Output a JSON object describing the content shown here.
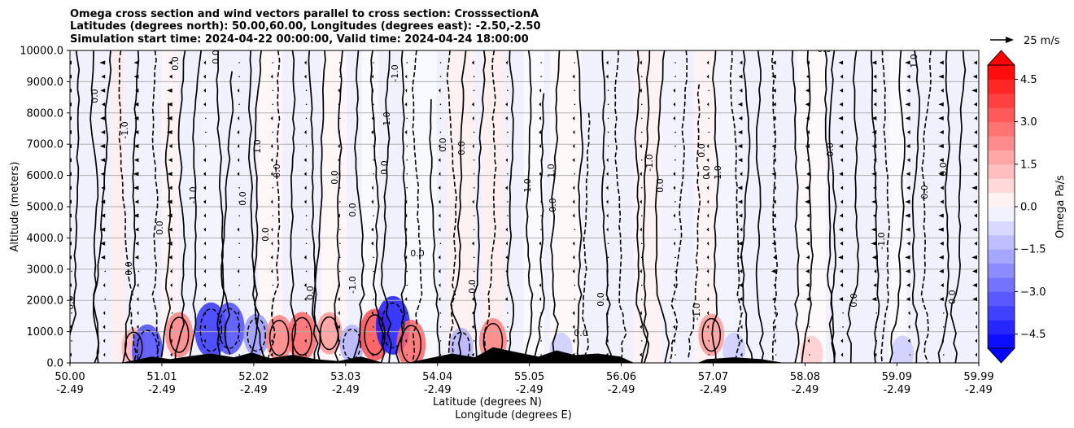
{
  "title_lines": [
    "Omega cross section and wind vectors parallel to cross section: CrosssectionA",
    "Latitudes (degrees north): 50.00,60.00, Longitudes (degrees east): -2.50,-2.50",
    "Simulation start time: 2024-04-22 00:00:00, Valid time: 2024-04-24 18:00:00"
  ],
  "chart_data": {
    "type": "heatmap",
    "title": "Omega cross section and wind vectors parallel to cross section: CrosssectionA",
    "ylabel": "Altitude (meters)",
    "xlabel_lines": [
      "Latitude (degrees N)",
      "Longitude (degrees E)"
    ],
    "ylim": [
      0,
      10000
    ],
    "xlim": [
      50.0,
      59.99
    ],
    "y_ticks": [
      0,
      1000,
      2000,
      3000,
      4000,
      5000,
      6000,
      7000,
      8000,
      9000,
      10000
    ],
    "y_tick_labels": [
      "0.0",
      "1000.0",
      "2000.0",
      "3000.0",
      "4000.0",
      "5000.0",
      "6000.0",
      "7000.0",
      "8000.0",
      "9000.0",
      "10000.0"
    ],
    "x_ticks": [
      50.0,
      51.01,
      52.02,
      53.03,
      54.04,
      55.05,
      56.06,
      57.07,
      58.08,
      59.09,
      59.99
    ],
    "x_tick_labels": [
      [
        "50.00",
        "-2.49"
      ],
      [
        "51.01",
        "-2.49"
      ],
      [
        "52.02",
        "-2.49"
      ],
      [
        "53.03",
        "-2.49"
      ],
      [
        "54.04",
        "-2.49"
      ],
      [
        "55.05",
        "-2.49"
      ],
      [
        "56.06",
        "-2.49"
      ],
      [
        "57.07",
        "-2.49"
      ],
      [
        "58.08",
        "-2.49"
      ],
      [
        "59.09",
        "-2.49"
      ],
      [
        "59.99",
        "-2.49"
      ]
    ],
    "grid": "horizontal",
    "colorbar": {
      "label": "Omega Pa/s",
      "range": [
        -5.0,
        5.0
      ],
      "ticks": [
        -4.5,
        -3.0,
        -1.5,
        0.0,
        1.5,
        3.0,
        4.5
      ],
      "tick_labels": [
        "−4.5",
        "−3.0",
        "−1.5",
        "0.0",
        "1.5",
        "3.0",
        "4.5"
      ],
      "extend": "both",
      "colormap": "bwr"
    },
    "quiver_key": {
      "label": "25 m/s",
      "speed": 25
    },
    "contour_labels": [
      "0.0",
      "-1.0",
      "1.0"
    ],
    "vertical_bands": [
      {
        "lat": 50.6,
        "omega": 1.0
      },
      {
        "lat": 50.75,
        "omega": -0.8
      },
      {
        "lat": 51.1,
        "omega": 0.6
      },
      {
        "lat": 51.55,
        "omega": -0.6
      },
      {
        "lat": 52.2,
        "omega": 0.5
      },
      {
        "lat": 52.9,
        "omega": 0.5
      },
      {
        "lat": 53.3,
        "omega": -0.3
      },
      {
        "lat": 53.85,
        "omega": -0.4
      },
      {
        "lat": 54.3,
        "omega": 0.8
      },
      {
        "lat": 54.65,
        "omega": 0.9
      },
      {
        "lat": 55.1,
        "omega": -0.3
      },
      {
        "lat": 55.45,
        "omega": 0.4
      },
      {
        "lat": 56.35,
        "omega": 0.7
      },
      {
        "lat": 56.6,
        "omega": -0.7
      },
      {
        "lat": 57.0,
        "omega": 0.6
      },
      {
        "lat": 57.2,
        "omega": -0.6
      },
      {
        "lat": 58.15,
        "omega": 0.3
      },
      {
        "lat": 59.1,
        "omega": -0.3
      }
    ],
    "low_level_cells": [
      {
        "lat": 50.7,
        "alt": 500,
        "omega": 1.5
      },
      {
        "lat": 50.85,
        "alt": 400,
        "omega": -3.5
      },
      {
        "lat": 51.2,
        "alt": 900,
        "omega": 2.5
      },
      {
        "lat": 51.55,
        "alt": 1050,
        "omega": -4.0
      },
      {
        "lat": 51.75,
        "alt": 1100,
        "omega": -3.5
      },
      {
        "lat": 52.05,
        "alt": 900,
        "omega": -2.0
      },
      {
        "lat": 52.3,
        "alt": 800,
        "omega": 2.5
      },
      {
        "lat": 52.55,
        "alt": 850,
        "omega": 3.0
      },
      {
        "lat": 52.85,
        "alt": 950,
        "omega": 2.0
      },
      {
        "lat": 53.1,
        "alt": 600,
        "omega": -1.5
      },
      {
        "lat": 53.35,
        "alt": 900,
        "omega": 3.5
      },
      {
        "lat": 53.55,
        "alt": 1200,
        "omega": -4.5
      },
      {
        "lat": 53.75,
        "alt": 600,
        "omega": 3.0
      },
      {
        "lat": 54.3,
        "alt": 500,
        "omega": -1.5
      },
      {
        "lat": 54.65,
        "alt": 700,
        "omega": 2.5
      },
      {
        "lat": 55.4,
        "alt": 400,
        "omega": -1.0
      },
      {
        "lat": 57.05,
        "alt": 900,
        "omega": 2.0
      },
      {
        "lat": 57.3,
        "alt": 400,
        "omega": -1.0
      },
      {
        "lat": 58.15,
        "alt": 300,
        "omega": 1.0
      },
      {
        "lat": 59.15,
        "alt": 300,
        "omega": -1.0
      }
    ],
    "terrain": [
      {
        "lat": 50.0,
        "alt": 0
      },
      {
        "lat": 50.55,
        "alt": 0
      },
      {
        "lat": 50.7,
        "alt": 80
      },
      {
        "lat": 50.9,
        "alt": 200
      },
      {
        "lat": 51.1,
        "alt": 120
      },
      {
        "lat": 51.35,
        "alt": 230
      },
      {
        "lat": 51.55,
        "alt": 300
      },
      {
        "lat": 51.8,
        "alt": 180
      },
      {
        "lat": 52.0,
        "alt": 330
      },
      {
        "lat": 52.2,
        "alt": 150
      },
      {
        "lat": 52.45,
        "alt": 260
      },
      {
        "lat": 52.7,
        "alt": 120
      },
      {
        "lat": 52.95,
        "alt": 60
      },
      {
        "lat": 53.2,
        "alt": 200
      },
      {
        "lat": 53.45,
        "alt": 0
      },
      {
        "lat": 53.7,
        "alt": 0
      },
      {
        "lat": 53.95,
        "alt": 150
      },
      {
        "lat": 54.2,
        "alt": 300
      },
      {
        "lat": 54.45,
        "alt": 180
      },
      {
        "lat": 54.65,
        "alt": 500
      },
      {
        "lat": 54.9,
        "alt": 350
      },
      {
        "lat": 55.15,
        "alt": 200
      },
      {
        "lat": 55.35,
        "alt": 400
      },
      {
        "lat": 55.55,
        "alt": 250
      },
      {
        "lat": 55.8,
        "alt": 300
      },
      {
        "lat": 56.05,
        "alt": 200
      },
      {
        "lat": 56.2,
        "alt": 0
      },
      {
        "lat": 56.9,
        "alt": 0
      },
      {
        "lat": 57.0,
        "alt": 120
      },
      {
        "lat": 57.3,
        "alt": 180
      },
      {
        "lat": 57.6,
        "alt": 120
      },
      {
        "lat": 57.85,
        "alt": 0
      },
      {
        "lat": 59.99,
        "alt": 0
      }
    ]
  }
}
